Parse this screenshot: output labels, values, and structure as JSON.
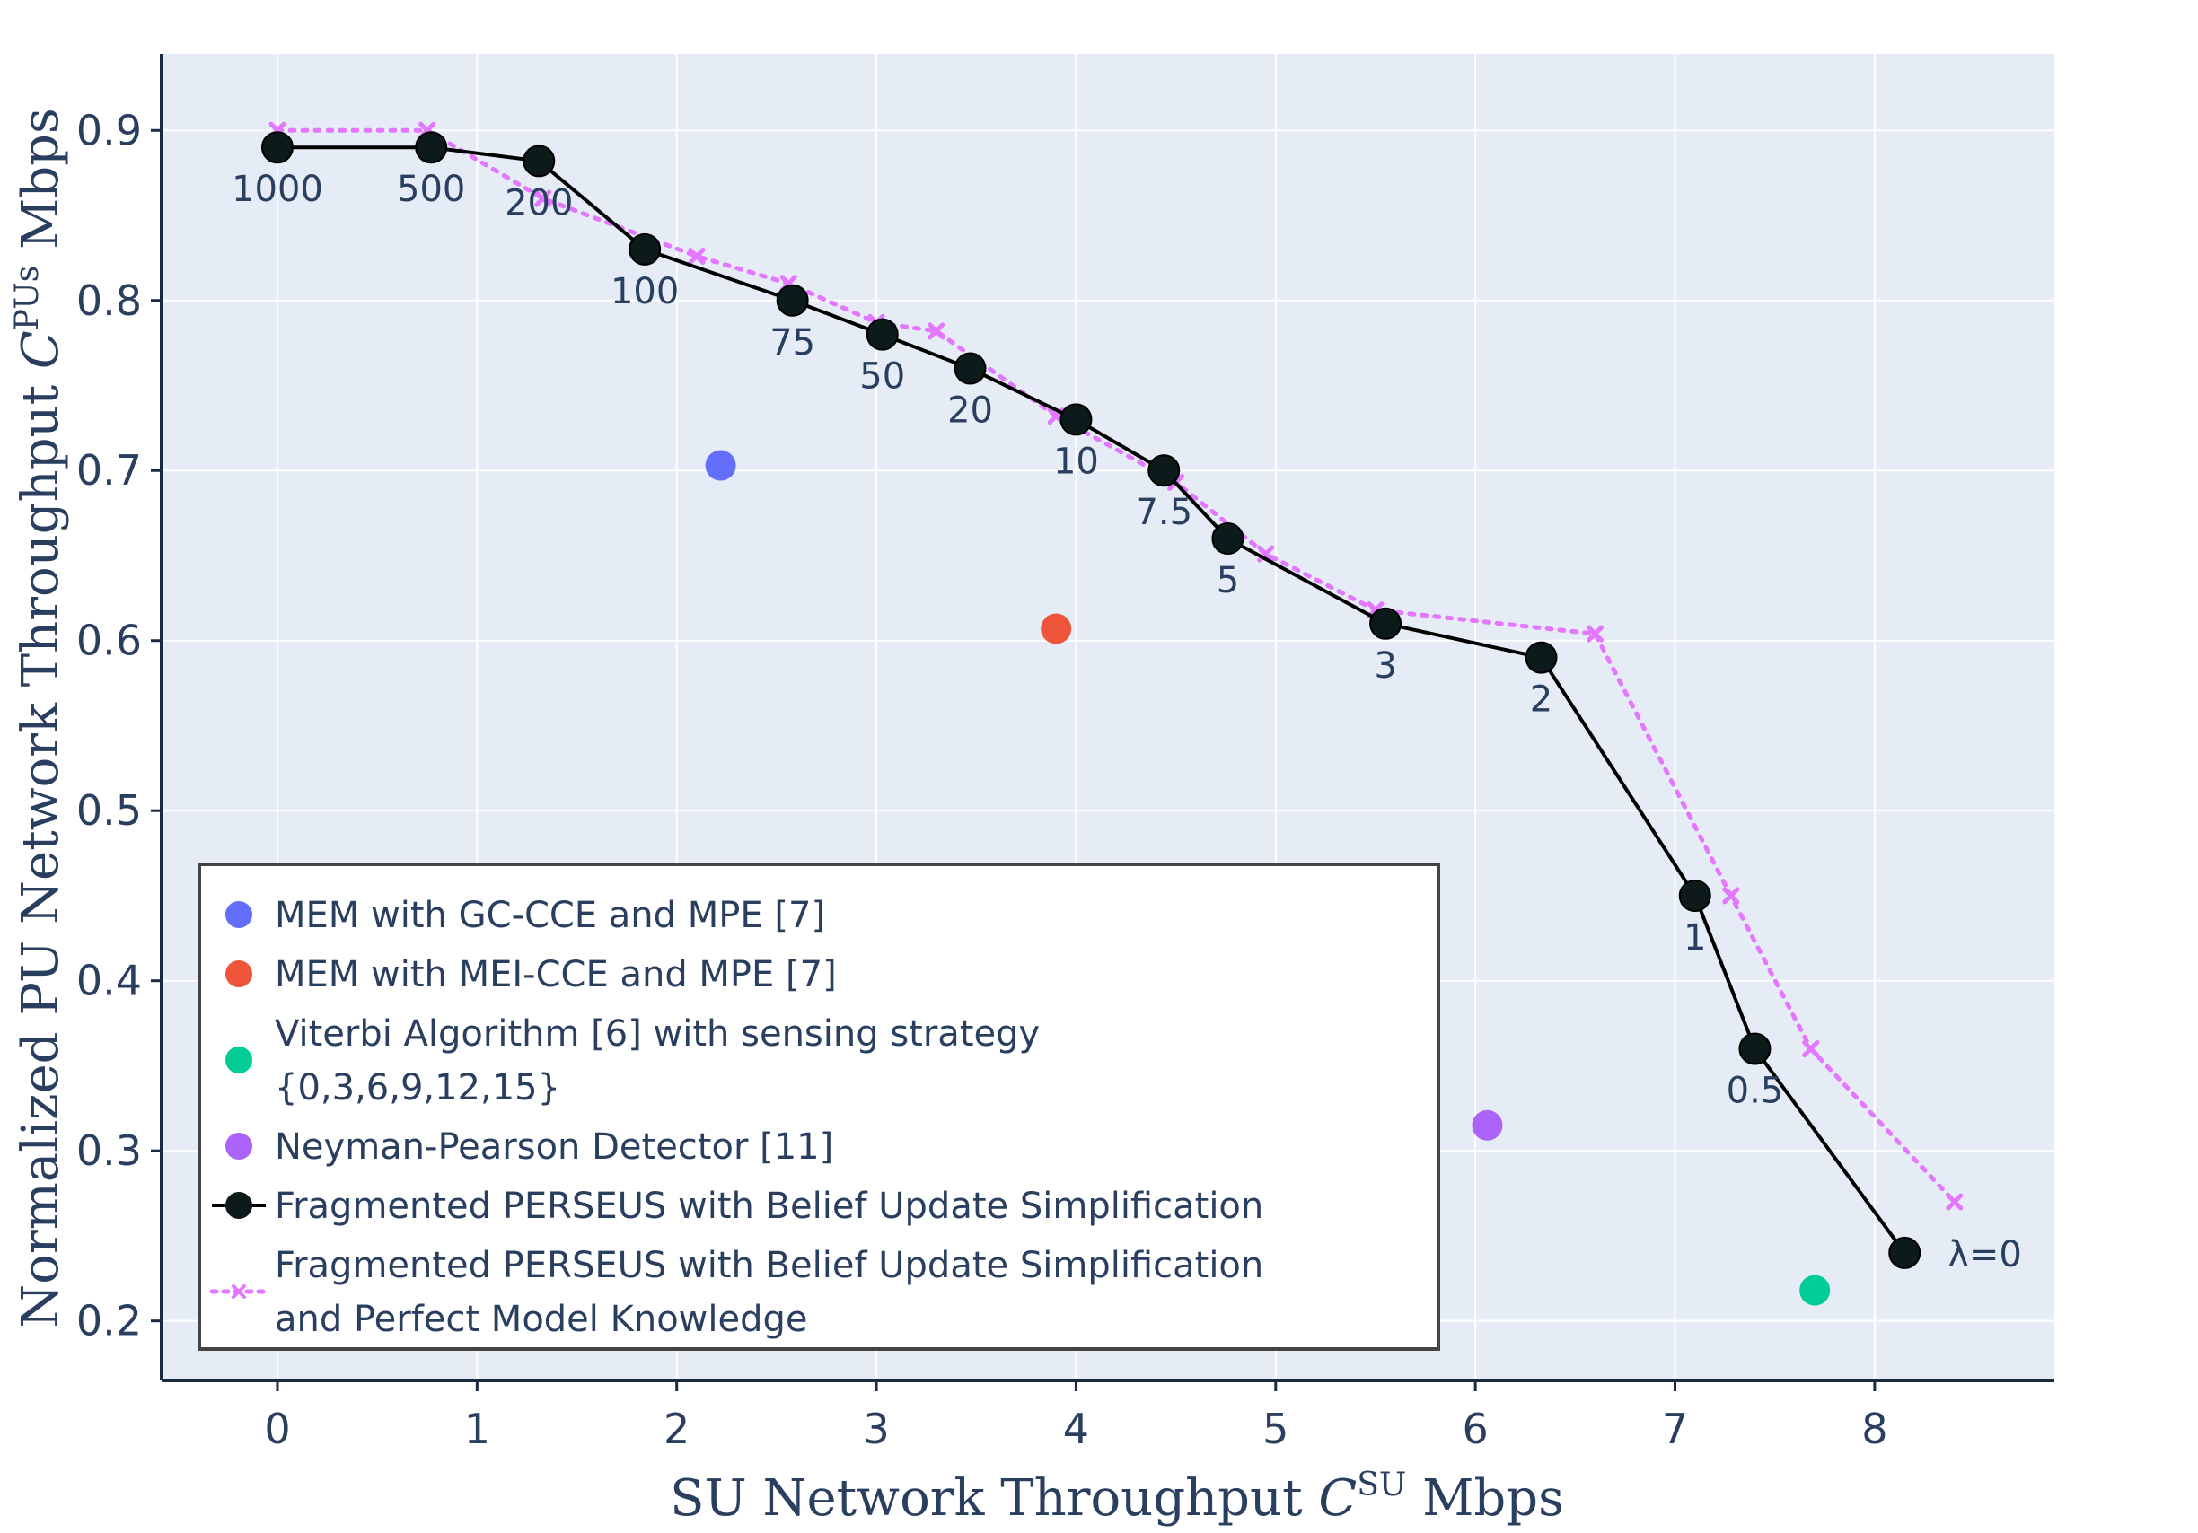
{
  "chart_data": {
    "type": "scatter",
    "xlabel": "SU Network Throughput",
    "xlabel_math": "C",
    "xlabel_sup": "SU",
    "xlabel_unit": "Mbps",
    "ylabel": "Normalized PU Network Throughput",
    "ylabel_math": "C",
    "ylabel_sup": "PUs",
    "ylabel_unit": "Mbps",
    "xlim": [
      -0.58,
      8.9
    ],
    "ylim": [
      0.165,
      0.945
    ],
    "x_ticks": [
      0,
      1,
      2,
      3,
      4,
      5,
      6,
      7,
      8
    ],
    "y_ticks": [
      0.2,
      0.3,
      0.4,
      0.5,
      0.6,
      0.7,
      0.8,
      0.9
    ],
    "grid": true,
    "legend_position": "bottom-left",
    "series": [
      {
        "name": "MEM with GC-CCE and MPE [7]",
        "mode": "markers",
        "color": "#636efa",
        "x": [
          2.22
        ],
        "y": [
          0.703
        ]
      },
      {
        "name": "MEM with MEI-CCE and MPE [7]",
        "mode": "markers",
        "color": "#ef553b",
        "x": [
          3.9
        ],
        "y": [
          0.607
        ]
      },
      {
        "name": "Viterbi Algorithm [6] with sensing strategy {0,3,6,9,12,15}",
        "name_lines": [
          "Viterbi Algorithm [6] with sensing strategy",
          "{0,3,6,9,12,15}"
        ],
        "mode": "markers",
        "color": "#00cc96",
        "x": [
          7.7
        ],
        "y": [
          0.218
        ]
      },
      {
        "name": "Neyman-Pearson Detector [11]",
        "mode": "markers",
        "color": "#ab63fa",
        "x": [
          6.06
        ],
        "y": [
          0.315
        ]
      },
      {
        "name": "Fragmented PERSEUS with Belief Update Simplification",
        "mode": "lines+markers+text",
        "color": "#000000",
        "x": [
          0.0,
          0.77,
          1.31,
          1.84,
          2.58,
          3.03,
          3.47,
          4.0,
          4.44,
          4.76,
          5.55,
          6.33,
          7.1,
          7.4,
          8.15
        ],
        "y": [
          0.89,
          0.89,
          0.882,
          0.83,
          0.8,
          0.78,
          0.76,
          0.73,
          0.7,
          0.66,
          0.61,
          0.59,
          0.45,
          0.36,
          0.24
        ],
        "labels": [
          "1000",
          "500",
          "200",
          "100",
          "75",
          "50",
          "20",
          "10",
          "7.5",
          "5",
          "3",
          "2",
          "1",
          "0.5",
          "λ=0"
        ]
      },
      {
        "name": "Fragmented PERSEUS with Belief Update Simplification and Perfect Model Knowledge",
        "name_lines": [
          "Fragmented PERSEUS with Belief Update Simplification",
          "and Perfect Model Knowledge"
        ],
        "mode": "lines+markers",
        "line_style": "dotted",
        "marker": "x",
        "color": "#e377ff",
        "x": [
          0.0,
          0.75,
          1.33,
          2.1,
          2.56,
          3.0,
          3.3,
          3.9,
          4.5,
          4.95,
          5.5,
          6.6,
          7.28,
          7.68,
          8.4
        ],
        "y": [
          0.9,
          0.9,
          0.86,
          0.826,
          0.81,
          0.787,
          0.782,
          0.732,
          0.693,
          0.651,
          0.618,
          0.604,
          0.45,
          0.36,
          0.27
        ]
      }
    ]
  }
}
